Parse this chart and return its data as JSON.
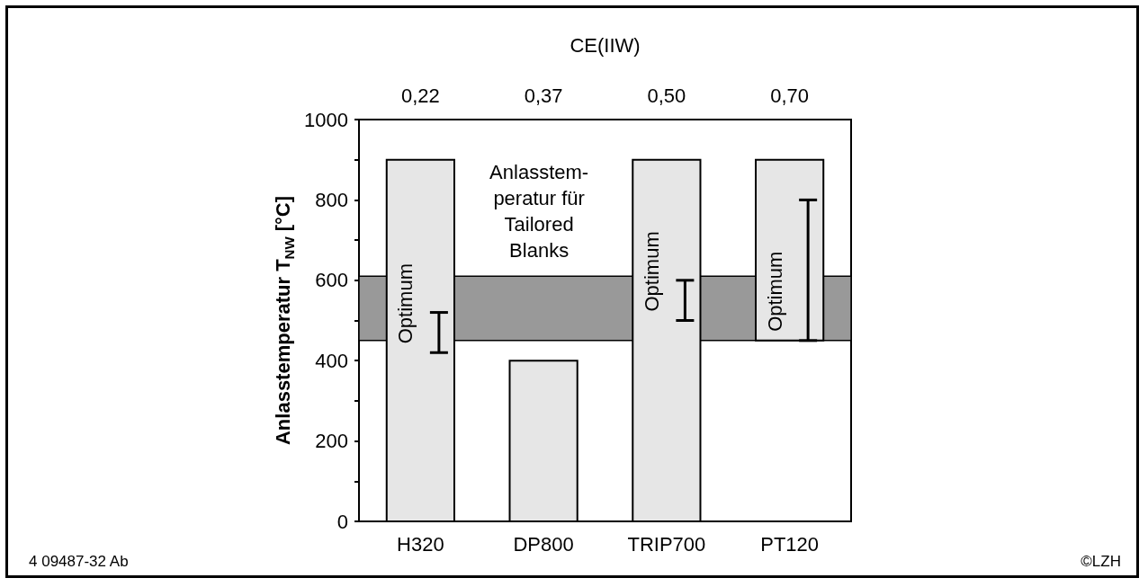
{
  "chart_data": {
    "type": "bar",
    "ylabel": "Anlasstemperatur T$_{NW}$ [°C]",
    "x2label": "CE(IIW)",
    "categories": [
      "H320",
      "DP800",
      "TRIP700",
      "PT120"
    ],
    "base": [
      0,
      0,
      0,
      450
    ],
    "values": [
      900,
      400,
      900,
      450
    ],
    "errors": [
      [
        420,
        520
      ],
      null,
      [
        500,
        600
      ],
      [
        450,
        800
      ]
    ],
    "color": "#e6e6e6",
    "ylim": [
      0,
      1000
    ],
    "yticks": [
      0,
      {
        "value": 100,
        "label": null
      },
      200,
      {
        "value": 300,
        "label": null
      },
      400,
      {
        "value": 500,
        "label": null
      },
      600,
      {
        "value": 700,
        "label": null
      },
      800,
      {
        "value": 900,
        "label": null
      },
      1000
    ],
    "bands": [
      {
        "axis": "y",
        "from": 450,
        "to": 610,
        "label": "Anlasstem-\nperatur für\nTailored\nBlanks",
        "color": "#999999"
      }
    ],
    "annotations": [
      "0,22",
      "0,37",
      "0,50",
      "0,70",
      "Optimum",
      "Optimum",
      "Optimum",
      "4 09487-32 Ab",
      "©LZH"
    ],
    "grid": false
  }
}
